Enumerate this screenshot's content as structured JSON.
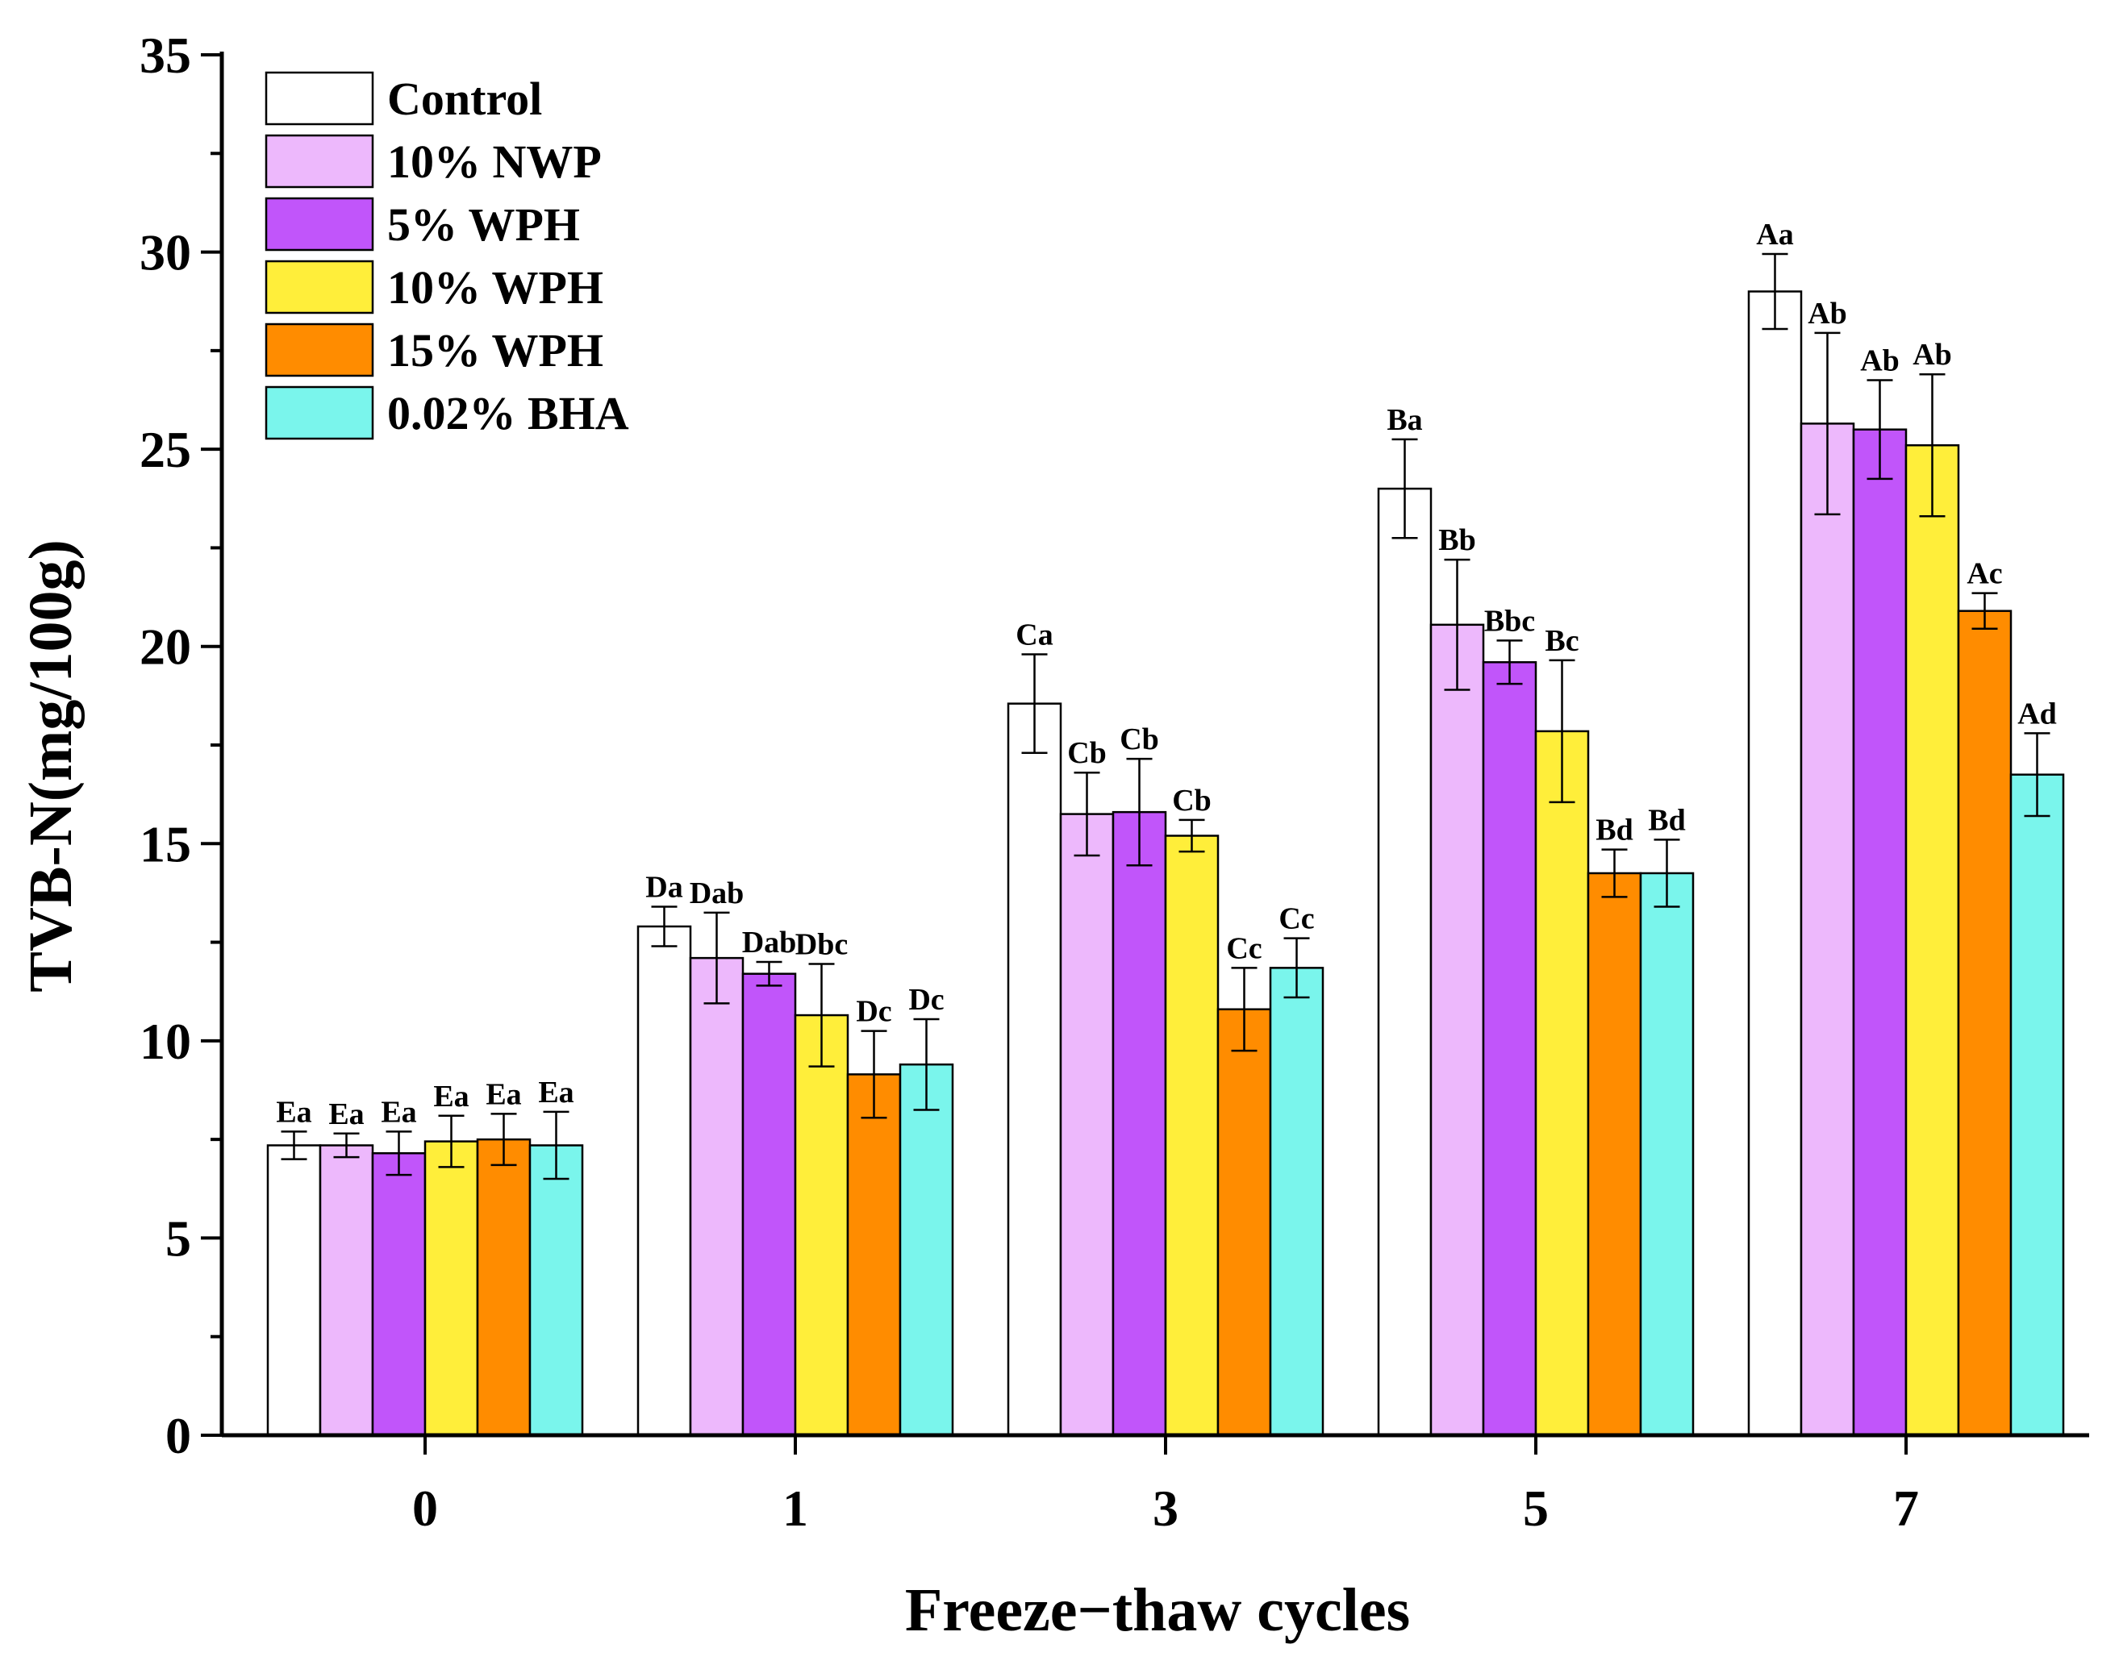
{
  "chart_data": {
    "type": "bar",
    "title": "",
    "xlabel": "Freeze−thaw cycles",
    "ylabel": "TVB-N(mg/100g)",
    "ylim": [
      0,
      35
    ],
    "yticks": [
      0,
      5,
      10,
      15,
      20,
      25,
      30,
      35
    ],
    "categories": [
      "0",
      "1",
      "3",
      "5",
      "7"
    ],
    "legend_position": "top-left",
    "series": [
      {
        "name": "Control",
        "color": "#FFFFFF",
        "values": [
          7.35,
          12.9,
          18.55,
          24.0,
          29.0
        ],
        "errors": [
          0.35,
          0.5,
          1.25,
          1.25,
          0.95
        ],
        "labels": [
          "Ea",
          "Da",
          "Ca",
          "Ba",
          "Aa"
        ]
      },
      {
        "name": "10% NWP",
        "color": "#EDB8FC",
        "values": [
          7.35,
          12.1,
          15.75,
          20.55,
          25.65
        ],
        "errors": [
          0.3,
          1.15,
          1.05,
          1.65,
          2.3
        ],
        "labels": [
          "Ea",
          "Dab",
          "Cb",
          "Bb",
          "Ab"
        ]
      },
      {
        "name": "5% WPH",
        "color": "#C155FA",
        "values": [
          7.15,
          11.7,
          15.8,
          19.6,
          25.5
        ],
        "errors": [
          0.55,
          0.3,
          1.35,
          0.55,
          1.25
        ],
        "labels": [
          "Ea",
          "Dab",
          "Cb",
          "Bbc",
          "Ab"
        ]
      },
      {
        "name": "10% WPH",
        "color": "#FFEE3A",
        "values": [
          7.45,
          10.65,
          15.2,
          17.85,
          25.1
        ],
        "errors": [
          0.65,
          1.3,
          0.4,
          1.8,
          1.8
        ],
        "labels": [
          "Ea",
          "Dbc",
          "Cb",
          "Bc",
          "Ab"
        ]
      },
      {
        "name": "15% WPH",
        "color": "#FF8C00",
        "values": [
          7.5,
          9.15,
          10.8,
          14.25,
          20.9
        ],
        "errors": [
          0.65,
          1.1,
          1.05,
          0.6,
          0.45
        ],
        "labels": [
          "Ea",
          "Dc",
          "Cc",
          "Bd",
          "Ac"
        ]
      },
      {
        "name": "0.02% BHA",
        "color": "#7AF5EC",
        "values": [
          7.35,
          9.4,
          11.85,
          14.25,
          16.75
        ],
        "errors": [
          0.85,
          1.15,
          0.75,
          0.85,
          1.05
        ],
        "labels": [
          "Ea",
          "Dc",
          "Cc",
          "Bd",
          "Ad"
        ]
      }
    ]
  }
}
